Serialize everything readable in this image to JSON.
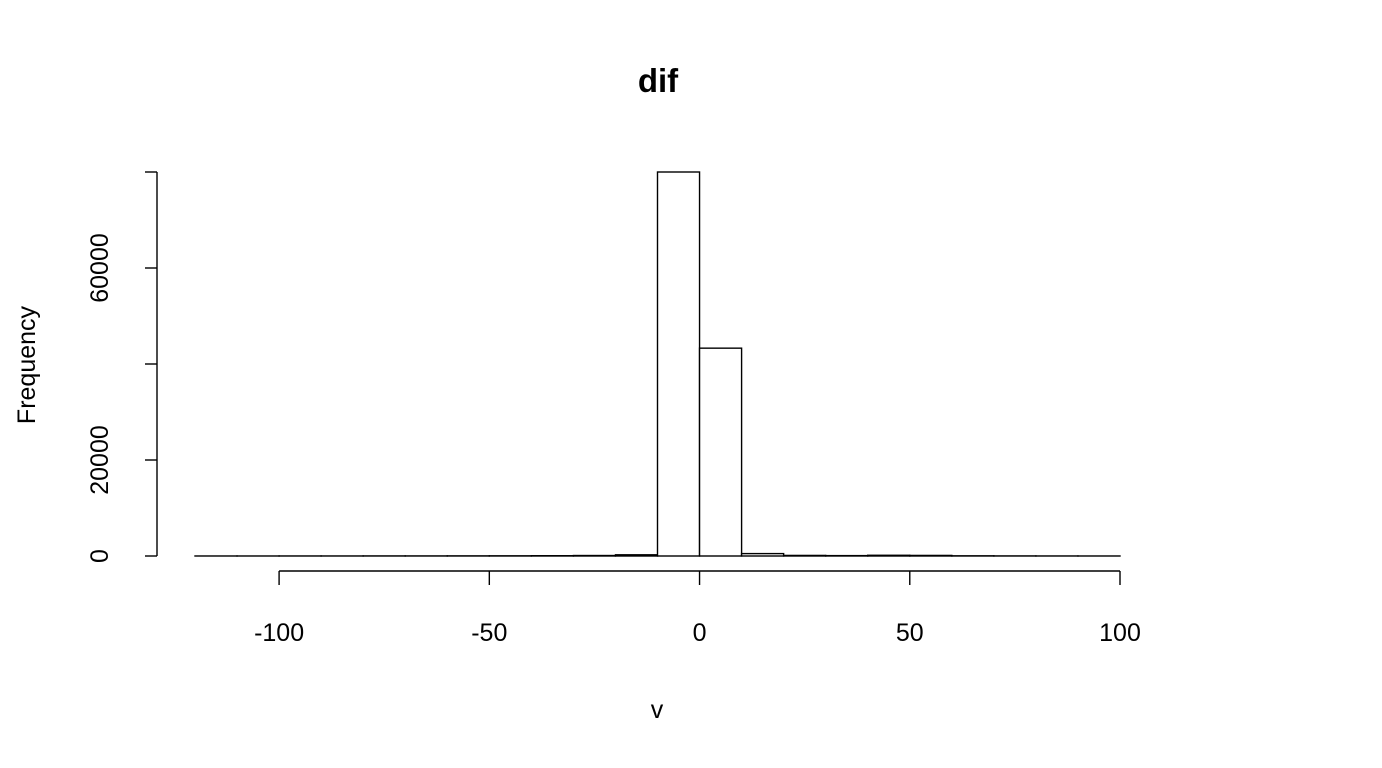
{
  "chart_data": {
    "type": "histogram",
    "title": "dif",
    "xlabel": "v",
    "ylabel": "Frequency",
    "bins": [
      -120,
      -110,
      -100,
      -90,
      -80,
      -70,
      -60,
      -50,
      -40,
      -30,
      -20,
      -10,
      0,
      10,
      20,
      30,
      40,
      50,
      60,
      70,
      80,
      90,
      100
    ],
    "counts": [
      5,
      5,
      10,
      10,
      20,
      20,
      30,
      40,
      60,
      100,
      250,
      80000,
      43300,
      500,
      120,
      80,
      150,
      120,
      40,
      20,
      10,
      5
    ],
    "color": "#ffffff",
    "edgecolor": "#000000",
    "xlim": [
      -120,
      100
    ],
    "xticks": [
      -100,
      -50,
      0,
      50,
      100
    ],
    "ylim": [
      0,
      80000
    ],
    "yticks": [
      0,
      20000,
      {
        "value": 40000,
        "label": null
      },
      60000,
      {
        "value": 80000,
        "label": null
      }
    ]
  }
}
